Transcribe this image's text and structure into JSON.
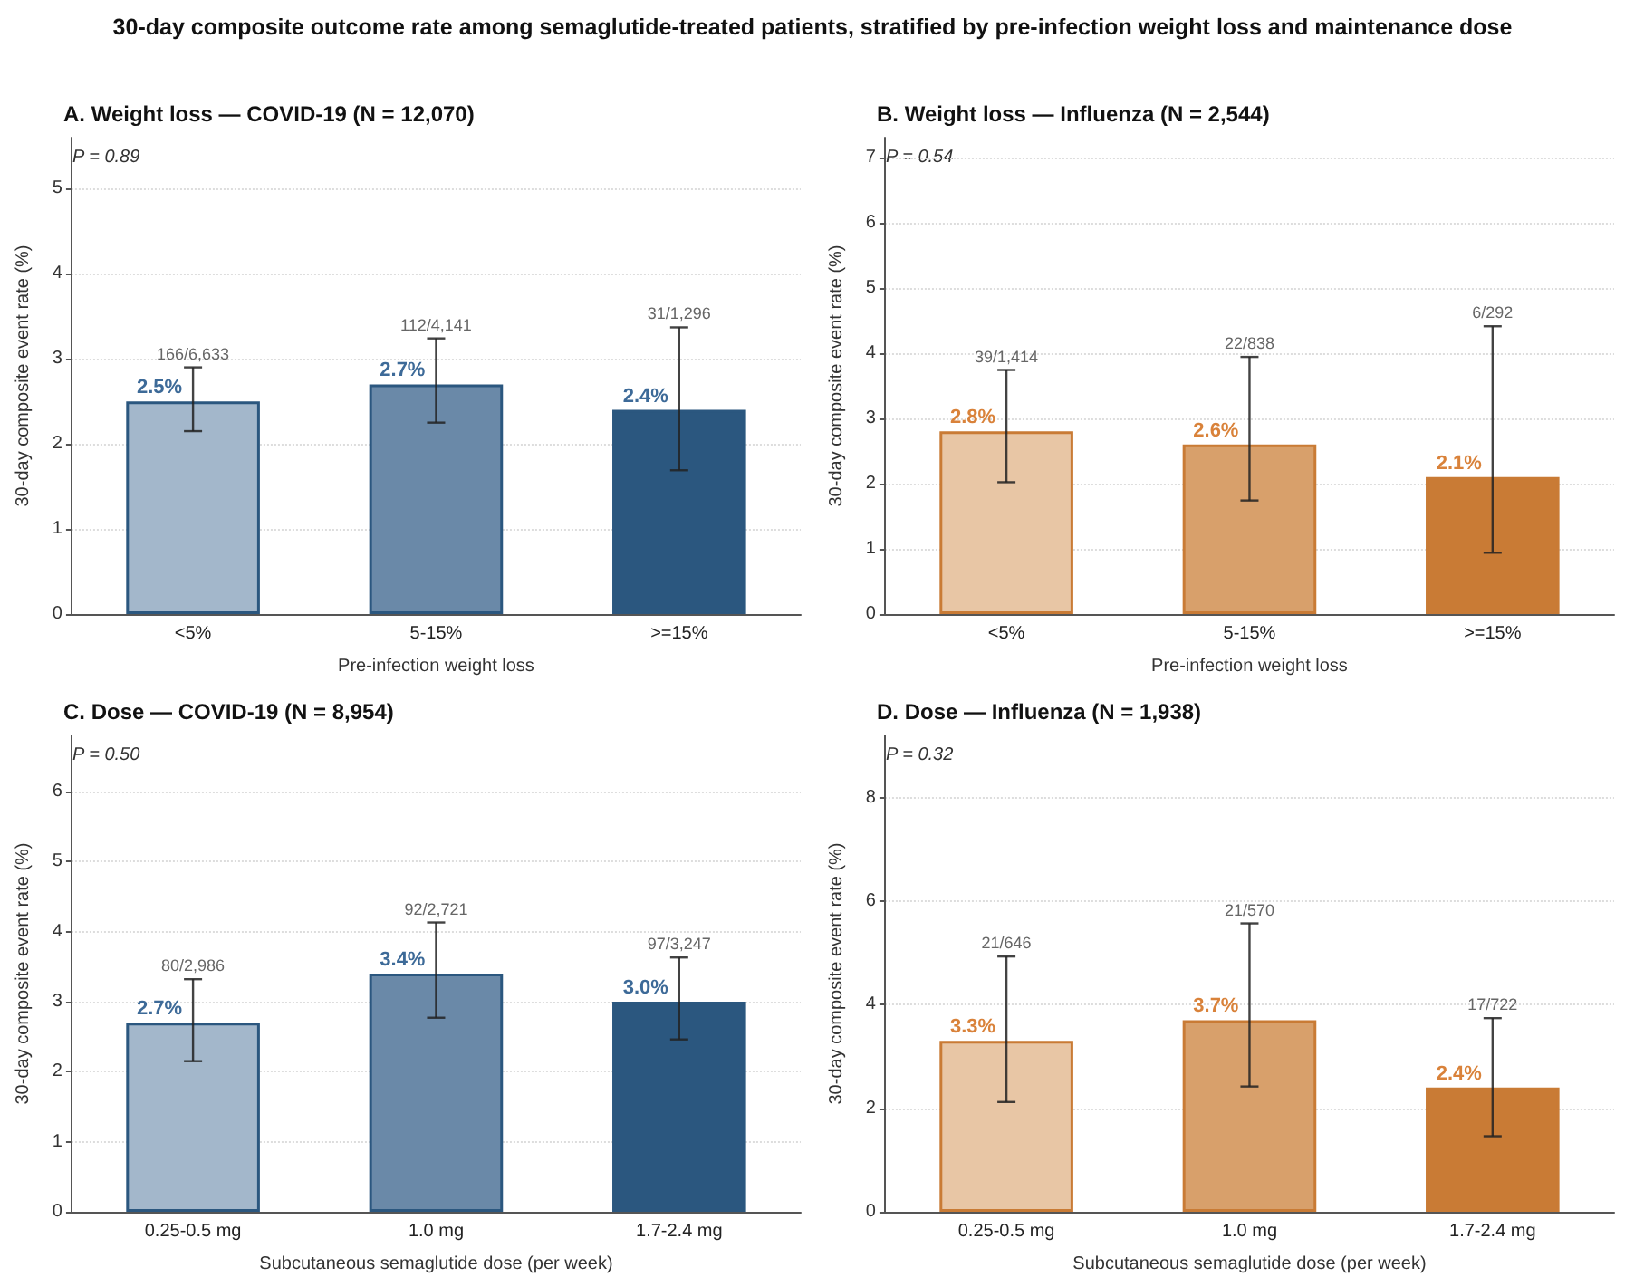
{
  "chart_data": [
    {
      "type": "bar",
      "title": "30-day composite outcome rate among semaglutide-treated patients, stratified by pre-infection weight loss and maintenance dose",
      "subtitle": "A. Weight loss — COVID-19 (N = 12,070)",
      "xlabel": "Pre-infection weight loss",
      "ylabel": "30-day composite event rate (%)",
      "categories": [
        "<5%",
        "5-15%",
        ">=15%"
      ],
      "values": [
        2.5,
        2.7,
        2.4
      ],
      "colors": [
        "#a3b7cb",
        "#6a89a8",
        "#2b577f"
      ],
      "errors": [
        [
          2.15,
          2.9
        ],
        [
          2.25,
          3.24
        ],
        [
          1.69,
          3.37
        ]
      ],
      "value_labels": [
        "2.5%",
        "2.7%",
        "2.4%"
      ],
      "ylim": [
        0,
        5.6
      ],
      "yticks": [
        0,
        1,
        2,
        3,
        4,
        5
      ],
      "grid": "y",
      "annotations": [
        "P = 0.89",
        "166/6,633",
        "112/4,141",
        "31/1,296"
      ]
    },
    {
      "type": "bar",
      "subtitle": "B. Weight loss — Influenza (N = 2,544)",
      "xlabel": "Pre-infection weight loss",
      "ylabel": "30-day composite event rate (%)",
      "categories": [
        "<5%",
        "5-15%",
        ">=15%"
      ],
      "values": [
        2.8,
        2.6,
        2.1
      ],
      "colors": [
        "#e8c6a5",
        "#d8a06b",
        "#c97b35"
      ],
      "errors": [
        [
          2.02,
          3.74
        ],
        [
          1.74,
          3.94
        ],
        [
          0.94,
          4.41
        ]
      ],
      "value_labels": [
        "2.8%",
        "2.6%",
        "2.1%"
      ],
      "ylim": [
        0,
        7.3
      ],
      "yticks": [
        0,
        1,
        2,
        3,
        4,
        5,
        6,
        7
      ],
      "grid": "y",
      "annotations": [
        "P = 0.54",
        "39/1,414",
        "22/838",
        "6/292"
      ]
    },
    {
      "type": "bar",
      "subtitle": "C. Dose — COVID-19 (N = 8,954)",
      "xlabel": "Subcutaneous semaglutide dose (per week)",
      "ylabel": "30-day composite event rate (%)",
      "categories": [
        "0.25-0.5 mg",
        "1.0 mg",
        "1.7-2.4 mg"
      ],
      "values": [
        2.7,
        3.4,
        3.0
      ],
      "colors": [
        "#a3b7cb",
        "#6a89a8",
        "#2b577f"
      ],
      "errors": [
        [
          2.15,
          3.32
        ],
        [
          2.77,
          4.13
        ],
        [
          2.46,
          3.63
        ]
      ],
      "value_labels": [
        "2.7%",
        "3.4%",
        "3.0%"
      ],
      "ylim": [
        0,
        6.8
      ],
      "yticks": [
        0,
        1,
        2,
        3,
        4,
        5,
        6
      ],
      "grid": "y",
      "annotations": [
        "P = 0.50",
        "80/2,986",
        "92/2,721",
        "97/3,247"
      ]
    },
    {
      "type": "bar",
      "subtitle": "D. Dose — Influenza (N = 1,938)",
      "xlabel": "Subcutaneous semaglutide dose (per week)",
      "ylabel": "30-day composite event rate (%)",
      "categories": [
        "0.25-0.5 mg",
        "1.0 mg",
        "1.7-2.4 mg"
      ],
      "values": [
        3.3,
        3.7,
        2.4
      ],
      "colors": [
        "#e8c6a5",
        "#d8a06b",
        "#c97b35"
      ],
      "errors": [
        [
          2.12,
          4.93
        ],
        [
          2.42,
          5.57
        ],
        [
          1.46,
          3.74
        ]
      ],
      "value_labels": [
        "3.3%",
        "3.7%",
        "2.4%"
      ],
      "ylim": [
        0,
        9.2
      ],
      "yticks": [
        0,
        2,
        4,
        6,
        8
      ],
      "grid": "y",
      "annotations": [
        "P = 0.32",
        "21/646",
        "21/570",
        "17/722"
      ]
    }
  ]
}
